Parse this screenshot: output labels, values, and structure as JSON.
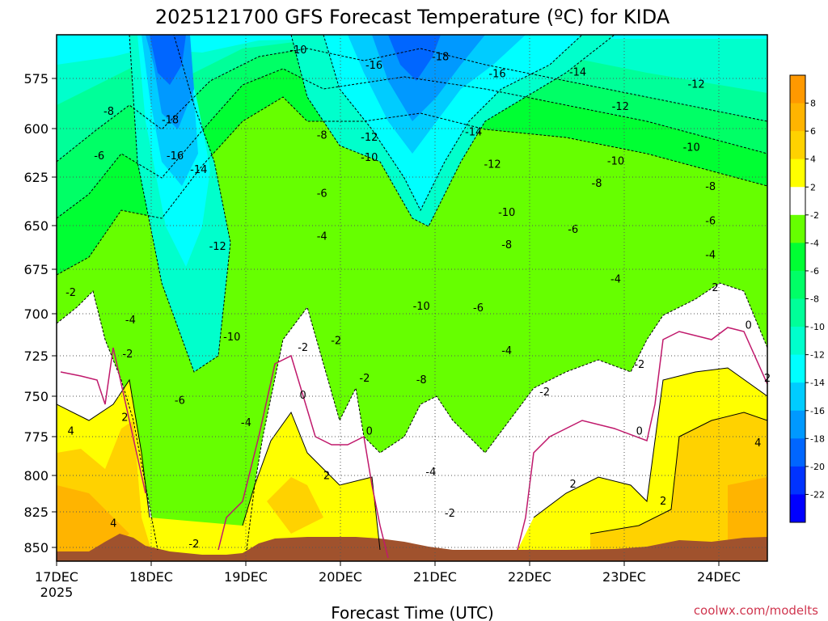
{
  "chart_data": {
    "type": "heatmap",
    "title": "2025121700 GFS Forecast Temperature (ºC) for KIDA",
    "xlabel": "Forecast Time (UTC)",
    "ylabel": "",
    "y_ticks": [
      "575",
      "600",
      "625",
      "650",
      "675",
      "700",
      "725",
      "750",
      "775",
      "800",
      "825",
      "850"
    ],
    "y_range": [
      552,
      860
    ],
    "x_ticks": [
      {
        "label": "17DEC",
        "sub": "2025",
        "t": 0
      },
      {
        "label": "18DEC",
        "sub": "",
        "t": 1
      },
      {
        "label": "19DEC",
        "sub": "",
        "t": 2
      },
      {
        "label": "20DEC",
        "sub": "",
        "t": 3
      },
      {
        "label": "21DEC",
        "sub": "",
        "t": 4
      },
      {
        "label": "22DEC",
        "sub": "",
        "t": 5
      },
      {
        "label": "23DEC",
        "sub": "",
        "t": 6
      },
      {
        "label": "24DEC",
        "sub": "",
        "t": 7
      }
    ],
    "x_range": [
      0,
      7.5
    ],
    "colorbar": {
      "labels": [
        "8",
        "6",
        "4",
        "2",
        "-2",
        "-4",
        "-6",
        "-8",
        "-10",
        "-12",
        "-14",
        "-16",
        "-18",
        "-20",
        "-22"
      ],
      "levels": [
        10,
        8,
        6,
        4,
        2,
        -2,
        -4,
        -6,
        -8,
        -10,
        -12,
        -14,
        -16,
        -18,
        -20,
        -22,
        -24
      ],
      "colors": [
        "#ff9900",
        "#ffb400",
        "#ffd200",
        "#ffff00",
        "#ffffff",
        "#66ff00",
        "#00ff33",
        "#00ff66",
        "#00ff99",
        "#00ffcc",
        "#00ffff",
        "#00ccff",
        "#0099ff",
        "#0066ff",
        "#0033ff",
        "#0000ff"
      ]
    },
    "contour_labels": [
      {
        "text": "-10",
        "t": 2.55,
        "p": 561
      },
      {
        "text": "-16",
        "t": 3.35,
        "p": 570
      },
      {
        "text": "-18",
        "t": 4.05,
        "p": 565
      },
      {
        "text": "-16",
        "t": 4.65,
        "p": 575
      },
      {
        "text": "-14",
        "t": 5.5,
        "p": 574
      },
      {
        "text": "-12",
        "t": 6.75,
        "p": 581
      },
      {
        "text": "-12",
        "t": 5.95,
        "p": 594
      },
      {
        "text": "-10",
        "t": 6.7,
        "p": 618
      },
      {
        "text": "-10",
        "t": 5.9,
        "p": 626
      },
      {
        "text": "-8",
        "t": 0.55,
        "p": 597
      },
      {
        "text": "-18",
        "t": 1.2,
        "p": 602
      },
      {
        "text": "-8",
        "t": 2.8,
        "p": 611
      },
      {
        "text": "-12",
        "t": 3.3,
        "p": 612
      },
      {
        "text": "-14",
        "t": 4.4,
        "p": 609
      },
      {
        "text": "-6",
        "t": 0.45,
        "p": 623
      },
      {
        "text": "-16",
        "t": 1.25,
        "p": 623
      },
      {
        "text": "-14",
        "t": 1.5,
        "p": 631
      },
      {
        "text": "-10",
        "t": 3.3,
        "p": 624
      },
      {
        "text": "-12",
        "t": 4.6,
        "p": 628
      },
      {
        "text": "-8",
        "t": 5.7,
        "p": 639
      },
      {
        "text": "-8",
        "t": 6.9,
        "p": 641
      },
      {
        "text": "-6",
        "t": 2.8,
        "p": 645
      },
      {
        "text": "-10",
        "t": 4.75,
        "p": 656
      },
      {
        "text": "-6",
        "t": 6.9,
        "p": 661
      },
      {
        "text": "-6",
        "t": 5.45,
        "p": 666
      },
      {
        "text": "-4",
        "t": 2.8,
        "p": 670
      },
      {
        "text": "-12",
        "t": 1.7,
        "p": 676
      },
      {
        "text": "-8",
        "t": 4.75,
        "p": 675
      },
      {
        "text": "-4",
        "t": 6.9,
        "p": 681
      },
      {
        "text": "-4",
        "t": 5.9,
        "p": 695
      },
      {
        "text": "2",
        "t": 6.95,
        "p": 700
      },
      {
        "text": "-2",
        "t": 0.15,
        "p": 703
      },
      {
        "text": "-4",
        "t": 0.78,
        "p": 719
      },
      {
        "text": "-10",
        "t": 3.85,
        "p": 711
      },
      {
        "text": "-6",
        "t": 4.45,
        "p": 712
      },
      {
        "text": "0",
        "t": 7.3,
        "p": 722
      },
      {
        "text": "-10",
        "t": 1.85,
        "p": 729
      },
      {
        "text": "-2",
        "t": 2.6,
        "p": 735
      },
      {
        "text": "-2",
        "t": 2.95,
        "p": 731
      },
      {
        "text": "-2",
        "t": 0.75,
        "p": 739
      },
      {
        "text": "-4",
        "t": 4.75,
        "p": 737
      },
      {
        "text": "-2",
        "t": 6.15,
        "p": 745
      },
      {
        "text": "-2",
        "t": 3.25,
        "p": 753
      },
      {
        "text": "-8",
        "t": 3.85,
        "p": 754
      },
      {
        "text": "2",
        "t": 7.5,
        "p": 753
      },
      {
        "text": "-2",
        "t": 5.15,
        "p": 761
      },
      {
        "text": "0",
        "t": 2.6,
        "p": 763
      },
      {
        "text": "-6",
        "t": 1.3,
        "p": 766
      },
      {
        "text": "2",
        "t": 0.72,
        "p": 776
      },
      {
        "text": "-4",
        "t": 2.0,
        "p": 779
      },
      {
        "text": "4",
        "t": 0.15,
        "p": 784
      },
      {
        "text": "0",
        "t": 3.3,
        "p": 784
      },
      {
        "text": "0",
        "t": 6.15,
        "p": 784
      },
      {
        "text": "4",
        "t": 7.4,
        "p": 791
      },
      {
        "text": "-4",
        "t": 3.95,
        "p": 808
      },
      {
        "text": "2",
        "t": 2.85,
        "p": 810
      },
      {
        "text": "2",
        "t": 5.45,
        "p": 815
      },
      {
        "text": "-2",
        "t": 4.15,
        "p": 832
      },
      {
        "text": "2",
        "t": 6.4,
        "p": 825
      },
      {
        "text": "4",
        "t": 0.6,
        "p": 838
      },
      {
        "text": "-2",
        "t": 1.45,
        "p": 850
      }
    ]
  },
  "credit": "coolwx.com/modelts"
}
